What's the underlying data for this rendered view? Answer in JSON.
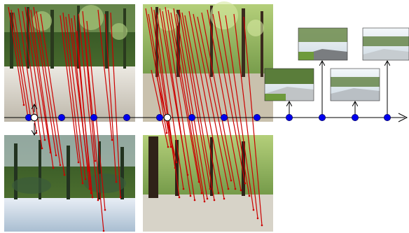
{
  "diagram": {
    "background": "#ffffff",
    "colors": {
      "match_line": "#cc0000",
      "timeline": "#000000",
      "node_fill": "#0000ee",
      "node_outline": "#000066",
      "key_node_fill": "#ffffff",
      "foliage_dark": "#2e4a22",
      "foliage_mid": "#4f7a30",
      "foliage_light": "#8fb35a",
      "road_light": "#dcd8cf",
      "road_blue": "#cfe0f0",
      "sky": "#e9f0f4",
      "trunk": "#3a2a1e",
      "grass": "#6e9a3c",
      "asphalt": "#6a6a6a"
    },
    "icons": [
      "timeline-arrow-icon",
      "node-dot-icon",
      "key-node-ring-icon",
      "up-arrow-icon",
      "double-arrow-icon"
    ],
    "caption": ""
  }
}
